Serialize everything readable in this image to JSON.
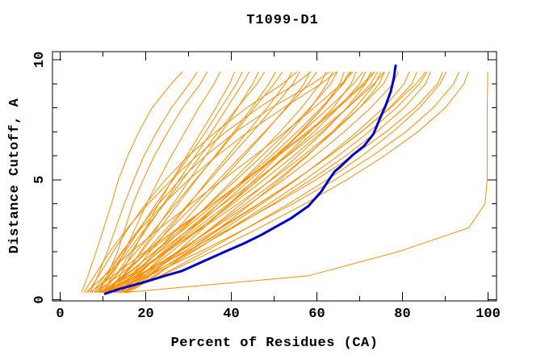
{
  "chart_data": {
    "type": "line",
    "title": "T1099-D1",
    "xlabel": "Percent of Residues (CA)",
    "ylabel": "Distance Cutoff, A",
    "xlim": [
      0,
      100
    ],
    "ylim": [
      0,
      10
    ],
    "grid": "off",
    "legend": "none",
    "x_major_ticks": [
      0,
      20,
      40,
      60,
      80,
      100
    ],
    "x_minor_ticks": [
      10,
      30,
      50,
      70,
      90
    ],
    "y_major_ticks": [
      0,
      5,
      10
    ],
    "y_minor_ticks": [
      1,
      2,
      3,
      4,
      6,
      7,
      8,
      9
    ],
    "colors": {
      "model": "#ff8c00",
      "highlight": "#0000cd",
      "axis": "#000000",
      "background": "#ffffff"
    },
    "cutoffs": [
      0.3,
      1,
      2,
      3,
      4,
      5,
      6,
      7,
      8,
      9,
      9.5
    ],
    "series": [
      {
        "name": "model-01",
        "x": [
          5,
          6.5,
          8.4,
          10.2,
          12,
          13.6,
          15.8,
          18.4,
          21.5,
          26,
          28.6
        ]
      },
      {
        "name": "model-02",
        "x": [
          7,
          8.8,
          11,
          13,
          15,
          17.2,
          19.6,
          22.6,
          26,
          30.2,
          32.1
        ]
      },
      {
        "name": "model-03",
        "x": [
          9,
          11,
          13.4,
          15.2,
          17,
          19.4,
          22,
          25.2,
          28.6,
          32.8,
          34.4
        ]
      },
      {
        "name": "model-04",
        "x": [
          10,
          12.2,
          15,
          17.6,
          20.2,
          23,
          26,
          29.2,
          32.4,
          36,
          37.4
        ]
      },
      {
        "name": "model-05",
        "x": [
          11.5,
          14,
          17,
          20,
          23,
          26.2,
          29.6,
          33,
          36.4,
          39.6,
          40.8
        ]
      },
      {
        "name": "model-06",
        "x": [
          8.5,
          11.4,
          15.2,
          18.8,
          22.4,
          26.4,
          30.2,
          34,
          37.6,
          41.2,
          42.6
        ]
      },
      {
        "name": "model-07",
        "x": [
          10,
          13,
          16.6,
          20.4,
          24.2,
          27.8,
          31.6,
          35.4,
          39,
          42.6,
          44.2
        ]
      },
      {
        "name": "model-08",
        "x": [
          12,
          15,
          18.8,
          22.6,
          26.4,
          30.2,
          34,
          37.8,
          41.5,
          45,
          46.4
        ]
      },
      {
        "name": "model-09",
        "x": [
          8.5,
          11.6,
          15.8,
          20,
          24.4,
          28.6,
          32.8,
          37,
          41.4,
          46,
          47.8
        ]
      },
      {
        "name": "model-10",
        "x": [
          11,
          14.6,
          19,
          23.4,
          27.6,
          31.8,
          36.2,
          40.6,
          44.8,
          48.8,
          50.4
        ]
      },
      {
        "name": "model-11",
        "x": [
          9,
          13,
          17.8,
          22.4,
          27,
          31.6,
          36.4,
          41,
          45.4,
          50,
          52
        ]
      },
      {
        "name": "model-12",
        "x": [
          13,
          16.6,
          21,
          25.6,
          30.2,
          34.6,
          39.2,
          43.8,
          48.4,
          52.6,
          54.2
        ]
      },
      {
        "name": "model-13",
        "x": [
          10.5,
          14.8,
          20,
          25,
          30,
          35,
          40,
          45,
          49.8,
          54.4,
          56
        ]
      },
      {
        "name": "model-14",
        "x": [
          12.5,
          17,
          22.4,
          27.6,
          32.6,
          37.8,
          43,
          48,
          52.8,
          57,
          58.4
        ]
      },
      {
        "name": "model-15",
        "x": [
          9.8,
          14.6,
          20.4,
          26,
          31.6,
          37,
          42.4,
          47.8,
          53,
          58,
          60
        ]
      },
      {
        "name": "model-16",
        "x": [
          11.8,
          16.8,
          23,
          29,
          34.8,
          40.4,
          46,
          51.4,
          56.4,
          60.8,
          62.2
        ]
      },
      {
        "name": "model-17",
        "x": [
          14,
          19,
          25,
          31,
          37,
          42.8,
          48.4,
          53.8,
          58.6,
          62.4,
          63.6
        ]
      },
      {
        "name": "model-18",
        "x": [
          10,
          15.4,
          22,
          28.6,
          35,
          41.2,
          47.2,
          53,
          58.4,
          63.2,
          64.8
        ]
      },
      {
        "name": "model-19",
        "x": [
          12,
          17.6,
          24.4,
          31.2,
          38,
          44.4,
          50.6,
          56.2,
          61.4,
          65.4,
          66.4
        ]
      },
      {
        "name": "model-20",
        "x": [
          9.5,
          15,
          22.2,
          29.4,
          36.2,
          43,
          49.4,
          55.4,
          61,
          66.2,
          68
        ]
      },
      {
        "name": "model-21",
        "x": [
          13,
          18.8,
          26,
          33,
          39.8,
          46.4,
          52.6,
          58.4,
          63.8,
          68,
          69.2
        ]
      },
      {
        "name": "model-22",
        "x": [
          11,
          17,
          24.6,
          32,
          39.4,
          46.4,
          53,
          59.4,
          65,
          70,
          71.4
        ]
      },
      {
        "name": "model-23",
        "x": [
          14.5,
          20.6,
          28,
          35.4,
          42.4,
          49.2,
          55.6,
          61.6,
          67,
          71.4,
          72.6
        ]
      },
      {
        "name": "model-24",
        "x": [
          10.8,
          17,
          25,
          32.8,
          40.4,
          47.6,
          54.6,
          61.2,
          67.2,
          72.6,
          74.2
        ]
      },
      {
        "name": "model-25",
        "x": [
          12.8,
          19.4,
          27.6,
          35.6,
          43.4,
          50.8,
          57.6,
          64,
          70,
          74.6,
          75.8
        ]
      },
      {
        "name": "model-26",
        "x": [
          9,
          16,
          24.8,
          33.4,
          41.6,
          49.4,
          56.8,
          63.6,
          70,
          75.6,
          77
        ]
      },
      {
        "name": "model-27",
        "x": [
          11.5,
          18.6,
          27.4,
          36,
          44.4,
          52.2,
          59.6,
          66.4,
          72.6,
          77.8,
          79
        ]
      },
      {
        "name": "model-28",
        "x": [
          13.5,
          20.8,
          30,
          38.8,
          47.2,
          55.2,
          62.6,
          69.4,
          75.6,
          80.4,
          81.6
        ]
      },
      {
        "name": "model-29",
        "x": [
          10.2,
          18,
          27.8,
          37.4,
          46.4,
          55,
          63,
          70.4,
          77,
          82.2,
          83.4
        ]
      },
      {
        "name": "model-30",
        "x": [
          12.2,
          20.4,
          30.6,
          40.4,
          49.8,
          58.6,
          66.8,
          74,
          80.4,
          85.4,
          86.6
        ]
      },
      {
        "name": "model-31",
        "x": [
          9.2,
          18.2,
          29.4,
          40,
          50.2,
          59.8,
          68.4,
          76.2,
          83,
          88.2,
          89.4
        ]
      },
      {
        "name": "model-32",
        "x": [
          11.2,
          20.8,
          32.6,
          43.8,
          54.4,
          64.2,
          73,
          80.8,
          87.2,
          92,
          93.2
        ]
      },
      {
        "name": "model-33",
        "x": [
          13.8,
          23.6,
          35.4,
          46.6,
          57.2,
          67,
          75.8,
          83.6,
          90,
          94.4,
          95.4
        ]
      },
      {
        "name": "model-34",
        "x": [
          15,
          58,
          79,
          95.5,
          99.3,
          99.8,
          99.8,
          99.8,
          99.8,
          99.9,
          99.9
        ]
      },
      {
        "name": "model-35",
        "x": [
          6.5,
          9,
          12.4,
          16,
          20,
          24.6,
          30,
          36.4,
          43.6,
          52,
          55.4
        ]
      },
      {
        "name": "model-36",
        "x": [
          7.5,
          10.4,
          14.4,
          19,
          24.2,
          30,
          36.6,
          44,
          52.2,
          61,
          64.6
        ]
      },
      {
        "name": "model-37",
        "x": [
          8,
          11,
          14.6,
          18.6,
          23,
          28,
          34,
          41,
          49.4,
          59,
          63
        ]
      },
      {
        "name": "model-38",
        "x": [
          15.5,
          21,
          27.4,
          33.6,
          39.6,
          45.4,
          51,
          56.4,
          61.4,
          66,
          67.6
        ]
      },
      {
        "name": "model-39",
        "x": [
          16,
          22.4,
          30,
          37.4,
          44.6,
          51.4,
          57.8,
          63.6,
          69,
          73.6,
          75
        ]
      },
      {
        "name": "model-40",
        "x": [
          6,
          10.4,
          16.6,
          23.4,
          30.6,
          38,
          45.4,
          52.6,
          59.4,
          65.8,
          68.4
        ]
      },
      {
        "name": "model-41",
        "x": [
          7,
          12.4,
          19.8,
          27.6,
          35.6,
          43.4,
          51,
          58.2,
          65,
          71.2,
          73.6
        ]
      },
      {
        "name": "model-42",
        "x": [
          14.8,
          22,
          31,
          40,
          48.8,
          57.2,
          65,
          72.2,
          78.6,
          84,
          85.8
        ]
      },
      {
        "name": "model-43",
        "x": [
          15,
          23.4,
          33.8,
          43.8,
          53.4,
          62.4,
          70.6,
          77.8,
          84,
          88.8,
          90.2
        ]
      },
      {
        "name": "model-44",
        "x": [
          5.5,
          8,
          11.6,
          15.8,
          20.6,
          26,
          32,
          38.8,
          46.4,
          55,
          58.6
        ]
      },
      {
        "name": "model-45",
        "x": [
          13.2,
          18,
          24,
          30.4,
          37,
          43.6,
          50.2,
          56.6,
          62.8,
          68.6,
          70.8
        ]
      },
      {
        "name": "model-46",
        "x": [
          10.6,
          16.2,
          23.2,
          30.6,
          38.2,
          45.8,
          53.2,
          60.4,
          67.2,
          73.4,
          75.8
        ]
      },
      {
        "name": "model-47",
        "x": [
          12.6,
          19.8,
          28.8,
          37.8,
          46.6,
          55,
          63,
          70.4,
          77.2,
          83.2,
          85.4
        ]
      },
      {
        "name": "model-48",
        "x": [
          8.2,
          13.6,
          20.6,
          28,
          35.6,
          43.2,
          50.6,
          57.8,
          64.6,
          70.8,
          73.2
        ]
      }
    ],
    "highlight_series": {
      "name": "highlighted-model",
      "x": [
        10.5,
        13,
        16,
        20,
        24.5,
        28.5,
        33.5,
        38.5,
        43,
        47,
        51,
        54,
        58,
        61,
        63,
        64.2,
        65.2,
        68.5,
        71,
        73.2,
        74.6,
        76.1,
        77.3,
        78,
        78.4
      ],
      "y": [
        0.25,
        0.4,
        0.55,
        0.75,
        1.0,
        1.2,
        1.6,
        2.0,
        2.35,
        2.7,
        3.1,
        3.4,
        3.9,
        4.5,
        5.05,
        5.35,
        5.5,
        6.05,
        6.4,
        6.9,
        7.5,
        8.1,
        8.7,
        9.25,
        9.75
      ]
    }
  }
}
